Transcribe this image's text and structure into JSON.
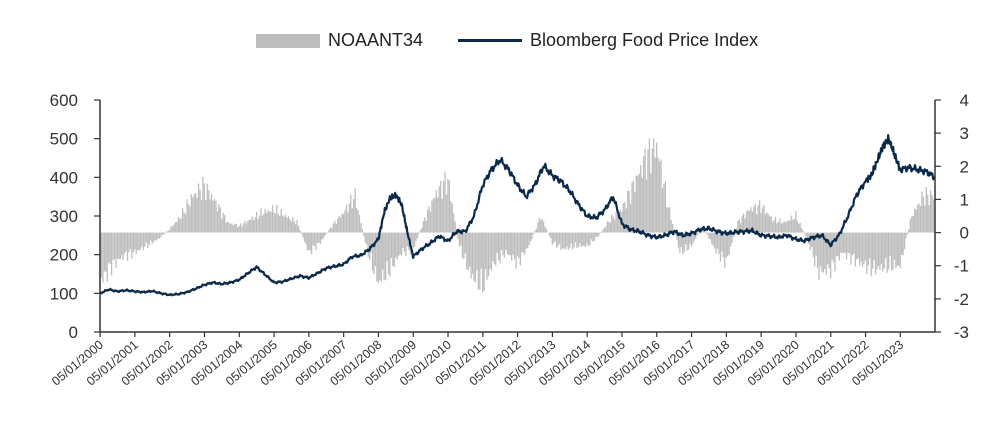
{
  "chart_data": {
    "type": "line",
    "title": "",
    "xlabel": "",
    "ylabel": "",
    "y_left_lim": [
      0,
      600
    ],
    "y_left_ticks": [
      "0",
      "100",
      "200",
      "300",
      "400",
      "500",
      "600"
    ],
    "y_right_lim": [
      -3,
      4
    ],
    "y_right_ticks": [
      "-3",
      "-2",
      "-1",
      "0",
      "1",
      "2",
      "3",
      "4"
    ],
    "x_ticks": [
      "05/01/2000",
      "05/01/2001",
      "05/01/2002",
      "05/01/2003",
      "05/01/2004",
      "05/01/2005",
      "05/01/2006",
      "05/01/2007",
      "05/01/2008",
      "05/01/2009",
      "05/01/2010",
      "05/01/2011",
      "05/01/2012",
      "05/01/2013",
      "05/01/2014",
      "05/01/2015",
      "05/01/2016",
      "05/01/2017",
      "05/01/2018",
      "05/01/2019",
      "05/01/2020",
      "05/01/2021",
      "05/01/2022",
      "05/01/2023"
    ],
    "x_range": [
      2000.0,
      2024.0
    ],
    "grid": false,
    "legend_position": "top-center",
    "series": [
      {
        "name": "NOAANT34",
        "type": "bar",
        "axis": "right",
        "color": "#bdbdbd",
        "x": [
          2000.0,
          2000.33,
          2000.67,
          2001.0,
          2001.33,
          2001.67,
          2002.0,
          2002.33,
          2002.67,
          2003.0,
          2003.33,
          2003.67,
          2004.0,
          2004.33,
          2004.67,
          2005.0,
          2005.33,
          2005.67,
          2006.0,
          2006.33,
          2006.67,
          2007.0,
          2007.33,
          2007.67,
          2008.0,
          2008.33,
          2008.67,
          2009.0,
          2009.33,
          2009.67,
          2010.0,
          2010.33,
          2010.67,
          2011.0,
          2011.33,
          2011.67,
          2012.0,
          2012.33,
          2012.67,
          2013.0,
          2013.33,
          2013.67,
          2014.0,
          2014.33,
          2014.67,
          2015.0,
          2015.33,
          2015.67,
          2016.0,
          2016.33,
          2016.67,
          2017.0,
          2017.33,
          2017.67,
          2018.0,
          2018.33,
          2018.67,
          2019.0,
          2019.33,
          2019.67,
          2020.0,
          2020.33,
          2020.67,
          2021.0,
          2021.33,
          2021.67,
          2022.0,
          2022.33,
          2022.67,
          2023.0,
          2023.33,
          2023.67
        ],
        "values": [
          -1.5,
          -1.0,
          -0.7,
          -0.6,
          -0.4,
          -0.2,
          0.1,
          0.5,
          1.1,
          1.4,
          0.9,
          0.3,
          0.2,
          0.4,
          0.6,
          0.7,
          0.5,
          0.3,
          -0.6,
          -0.3,
          0.2,
          0.6,
          1.1,
          -0.5,
          -1.5,
          -1.1,
          -0.6,
          -0.5,
          0.4,
          1.2,
          1.6,
          -0.4,
          -1.3,
          -1.6,
          -0.9,
          -0.6,
          -0.9,
          -0.4,
          0.5,
          -0.3,
          -0.5,
          -0.4,
          -0.4,
          -0.1,
          0.4,
          0.7,
          1.4,
          2.2,
          2.6,
          0.8,
          -0.6,
          -0.4,
          0.2,
          -0.5,
          -0.9,
          0.3,
          0.7,
          0.8,
          0.4,
          0.3,
          0.5,
          -0.2,
          -1.2,
          -1.1,
          -0.6,
          -0.8,
          -1.0,
          -1.1,
          -1.0,
          -1.0,
          0.5,
          1.1
        ]
      },
      {
        "name": "Bloomberg Food Price Index",
        "type": "line",
        "axis": "left",
        "color": "#0b2a4a",
        "x": [
          2000.0,
          2000.25,
          2000.5,
          2000.75,
          2001.0,
          2001.25,
          2001.5,
          2001.75,
          2002.0,
          2002.25,
          2002.5,
          2002.75,
          2003.0,
          2003.25,
          2003.5,
          2003.75,
          2004.0,
          2004.25,
          2004.5,
          2004.75,
          2005.0,
          2005.25,
          2005.5,
          2005.75,
          2006.0,
          2006.25,
          2006.5,
          2006.75,
          2007.0,
          2007.25,
          2007.5,
          2007.75,
          2008.0,
          2008.17,
          2008.33,
          2008.5,
          2008.67,
          2008.83,
          2009.0,
          2009.25,
          2009.5,
          2009.75,
          2010.0,
          2010.25,
          2010.5,
          2010.75,
          2011.0,
          2011.25,
          2011.5,
          2011.75,
          2012.0,
          2012.25,
          2012.5,
          2012.75,
          2013.0,
          2013.25,
          2013.5,
          2013.75,
          2014.0,
          2014.25,
          2014.5,
          2014.75,
          2015.0,
          2015.25,
          2015.5,
          2015.75,
          2016.0,
          2016.25,
          2016.5,
          2016.75,
          2017.0,
          2017.25,
          2017.5,
          2017.75,
          2018.0,
          2018.25,
          2018.5,
          2018.75,
          2019.0,
          2019.25,
          2019.5,
          2019.75,
          2020.0,
          2020.25,
          2020.5,
          2020.75,
          2021.0,
          2021.25,
          2021.5,
          2021.75,
          2022.0,
          2022.17,
          2022.33,
          2022.5,
          2022.67,
          2022.83,
          2023.0,
          2023.25,
          2023.5,
          2023.75,
          2024.0
        ],
        "values": [
          100,
          110,
          105,
          108,
          105,
          103,
          106,
          100,
          96,
          98,
          103,
          112,
          122,
          128,
          124,
          128,
          135,
          152,
          168,
          148,
          128,
          130,
          138,
          145,
          140,
          152,
          165,
          170,
          175,
          195,
          198,
          215,
          240,
          310,
          345,
          355,
          330,
          260,
          195,
          215,
          230,
          248,
          235,
          260,
          260,
          300,
          380,
          420,
          445,
          420,
          380,
          350,
          380,
          430,
          405,
          390,
          365,
          330,
          300,
          295,
          315,
          350,
          280,
          265,
          260,
          250,
          245,
          250,
          260,
          250,
          255,
          265,
          268,
          260,
          255,
          258,
          260,
          262,
          250,
          248,
          245,
          250,
          240,
          236,
          245,
          250,
          225,
          252,
          300,
          355,
          390,
          405,
          440,
          480,
          500,
          460,
          420,
          425,
          420,
          415,
          400
        ]
      }
    ]
  }
}
